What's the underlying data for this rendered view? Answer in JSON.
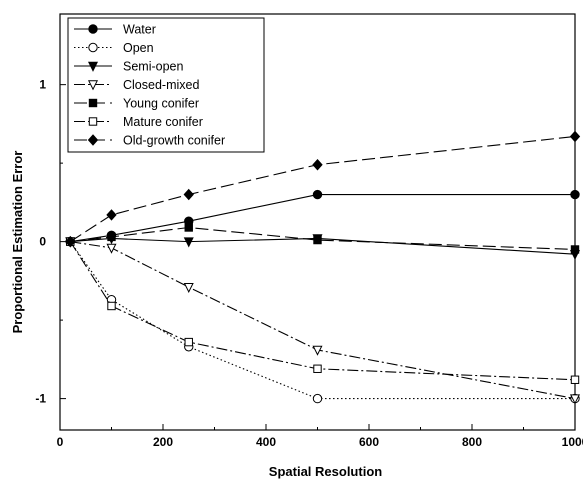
{
  "chart_data": {
    "type": "line",
    "title": "",
    "xlabel": "Spatial Resolution",
    "ylabel": "Proportional Estimation Error",
    "xlim": [
      0,
      1000
    ],
    "ylim": [
      -1.2,
      1.45
    ],
    "x_ticks": [
      0,
      200,
      400,
      600,
      800,
      1000
    ],
    "y_ticks": [
      -1,
      0,
      1
    ],
    "x_tick_labels": [
      "0",
      "200",
      "400",
      "600",
      "800",
      "1000"
    ],
    "y_tick_labels": [
      "-1",
      "0",
      "1"
    ],
    "grid": false,
    "legend_position": "top-left",
    "x": [
      20,
      100,
      250,
      500,
      1000
    ],
    "series": [
      {
        "name": "Water",
        "values": [
          0,
          0.04,
          0.13,
          0.3,
          0.3
        ],
        "marker": "filled-circle",
        "dash": "solid",
        "color": "#000000"
      },
      {
        "name": "Open",
        "values": [
          0,
          -0.37,
          -0.67,
          -1.0,
          -1.0
        ],
        "marker": "open-circle",
        "dash": "dotted",
        "color": "#000000"
      },
      {
        "name": "Semi-open",
        "values": [
          0,
          0.02,
          0.0,
          0.02,
          -0.08
        ],
        "marker": "filled-triangle-down",
        "dash": "solid",
        "color": "#000000"
      },
      {
        "name": "Closed-mixed",
        "values": [
          0,
          -0.04,
          -0.29,
          -0.69,
          -1.0
        ],
        "marker": "open-triangle-down",
        "dash": "dash-dot",
        "color": "#000000"
      },
      {
        "name": "Young conifer",
        "values": [
          0,
          0.03,
          0.09,
          0.01,
          -0.05
        ],
        "marker": "filled-square",
        "dash": "long-dash",
        "color": "#000000"
      },
      {
        "name": "Mature conifer",
        "values": [
          0,
          -0.41,
          -0.64,
          -0.81,
          -0.88
        ],
        "marker": "open-square",
        "dash": "dash-dot",
        "color": "#000000"
      },
      {
        "name": "Old-growth conifer",
        "values": [
          0,
          0.17,
          0.3,
          0.49,
          0.67
        ],
        "marker": "filled-diamond",
        "dash": "long-dash",
        "color": "#000000"
      }
    ]
  }
}
